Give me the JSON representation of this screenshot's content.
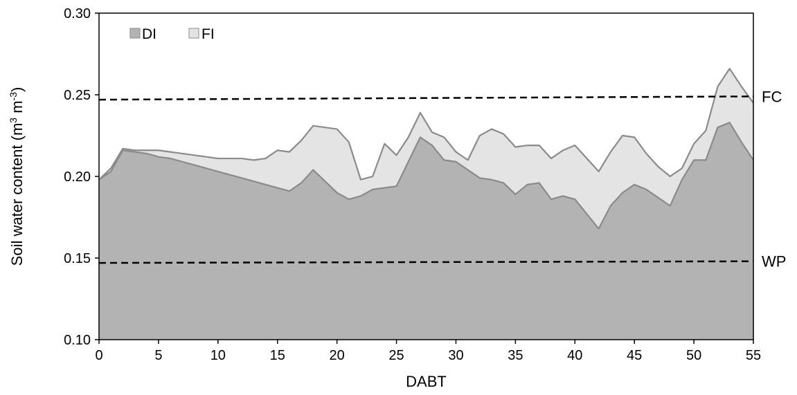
{
  "chart_data": {
    "type": "area",
    "title": "",
    "xlabel": "DABT",
    "ylabel_parts": {
      "base": "Soil water content (m",
      "sup1": "3",
      "mid": " m",
      "sup2": "-3",
      "end": ")"
    },
    "xlim": [
      0,
      55
    ],
    "ylim": [
      0.1,
      0.3
    ],
    "x_ticks": [
      0,
      5,
      10,
      15,
      20,
      25,
      30,
      35,
      40,
      45,
      50,
      55
    ],
    "y_ticks": [
      0.1,
      0.15,
      0.2,
      0.25,
      0.3
    ],
    "x_tick_labels": [
      "0",
      "5",
      "10",
      "15",
      "20",
      "25",
      "30",
      "35",
      "40",
      "45",
      "50",
      "55"
    ],
    "y_tick_labels": [
      "0.10",
      "0.15",
      "0.20",
      "0.25",
      "0.30"
    ],
    "legend_position": "top-left",
    "grid": false,
    "x": [
      0,
      1,
      2,
      3,
      4,
      5,
      6,
      7,
      8,
      9,
      10,
      11,
      12,
      13,
      14,
      15,
      16,
      17,
      18,
      19,
      20,
      21,
      22,
      23,
      24,
      25,
      26,
      27,
      28,
      29,
      30,
      31,
      32,
      33,
      34,
      35,
      36,
      37,
      38,
      39,
      40,
      41,
      42,
      43,
      44,
      45,
      46,
      47,
      48,
      49,
      50,
      51,
      52,
      53,
      54,
      55
    ],
    "series": [
      {
        "name": "FI",
        "color": "#e4e4e4",
        "line_color": "#8a8a8a",
        "values": [
          0.198,
          0.205,
          0.217,
          0.216,
          0.216,
          0.216,
          0.215,
          0.214,
          0.213,
          0.212,
          0.211,
          0.211,
          0.211,
          0.21,
          0.211,
          0.216,
          0.215,
          0.222,
          0.231,
          0.23,
          0.229,
          0.221,
          0.198,
          0.2,
          0.22,
          0.213,
          0.224,
          0.239,
          0.227,
          0.224,
          0.215,
          0.21,
          0.225,
          0.229,
          0.226,
          0.218,
          0.219,
          0.219,
          0.211,
          0.216,
          0.219,
          0.211,
          0.203,
          0.215,
          0.225,
          0.224,
          0.214,
          0.206,
          0.2,
          0.205,
          0.22,
          0.228,
          0.255,
          0.266,
          0.255,
          0.245
        ]
      },
      {
        "name": "DI",
        "color": "#b3b3b3",
        "line_color": "#8a8a8a",
        "values": [
          0.198,
          0.203,
          0.216,
          0.215,
          0.214,
          0.212,
          0.211,
          0.209,
          0.207,
          0.205,
          0.203,
          0.201,
          0.199,
          0.197,
          0.195,
          0.193,
          0.191,
          0.196,
          0.204,
          0.197,
          0.19,
          0.186,
          0.188,
          0.192,
          0.193,
          0.194,
          0.209,
          0.224,
          0.219,
          0.21,
          0.209,
          0.204,
          0.199,
          0.198,
          0.196,
          0.189,
          0.195,
          0.196,
          0.186,
          0.188,
          0.186,
          0.177,
          0.168,
          0.182,
          0.19,
          0.195,
          0.192,
          0.187,
          0.182,
          0.198,
          0.21,
          0.21,
          0.23,
          0.233,
          0.221,
          0.21
        ]
      }
    ],
    "reference_lines": [
      {
        "label": "FC",
        "y_start": 0.247,
        "y_end": 0.249
      },
      {
        "label": "WP",
        "y_start": 0.147,
        "y_end": 0.148
      }
    ]
  }
}
